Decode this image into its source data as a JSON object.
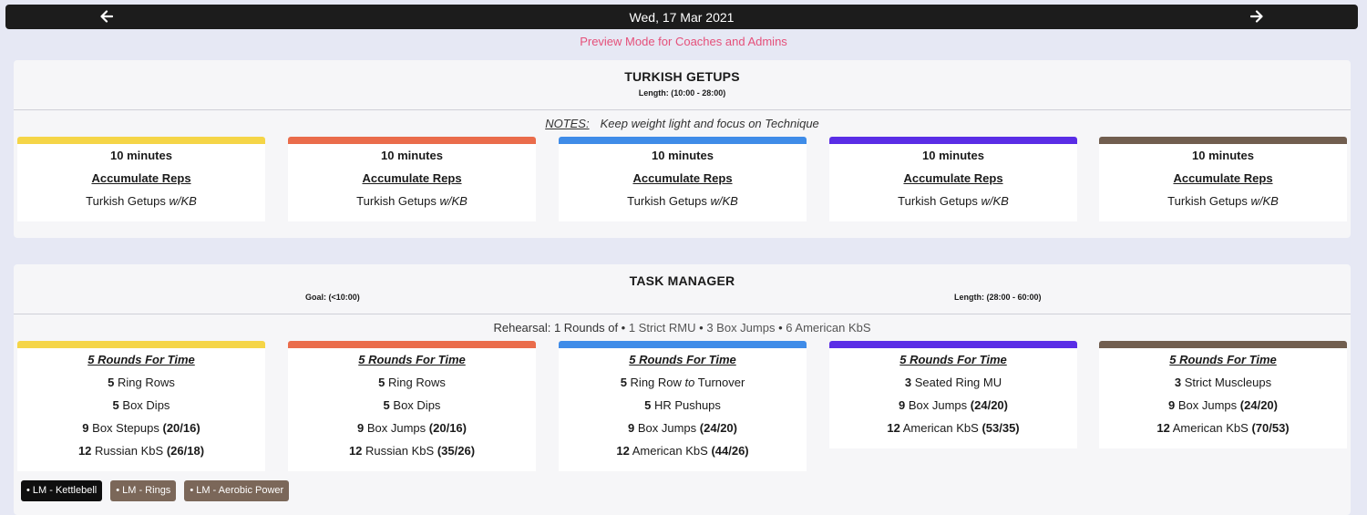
{
  "header": {
    "date": "Wed, 17 Mar 2021",
    "prev_icon": "arrow-left-icon",
    "next_icon": "arrow-right-icon"
  },
  "preview_text": "Preview Mode for Coaches and Admins",
  "colors": {
    "topbar": "#1c1c1c",
    "preview": "#e5507a",
    "tracks": [
      "#f5d547",
      "#ea6c4b",
      "#3f8ce8",
      "#5a2de6",
      "#715e4f"
    ]
  },
  "section1": {
    "title": "TURKISH GETUPS",
    "length": "Length: (10:00 - 28:00)",
    "notes_label": "NOTES:",
    "notes_text": "Keep weight light and focus on Technique",
    "cards": [
      {
        "time": "10 minutes",
        "format": "Accumulate Reps",
        "movement": "Turkish Getups",
        "equip": "w/KB"
      },
      {
        "time": "10 minutes",
        "format": "Accumulate Reps",
        "movement": "Turkish Getups",
        "equip": "w/KB"
      },
      {
        "time": "10 minutes",
        "format": "Accumulate Reps",
        "movement": "Turkish Getups",
        "equip": "w/KB"
      },
      {
        "time": "10 minutes",
        "format": "Accumulate Reps",
        "movement": "Turkish Getups",
        "equip": "w/KB"
      },
      {
        "time": "10 minutes",
        "format": "Accumulate Reps",
        "movement": "Turkish Getups",
        "equip": "w/KB"
      }
    ]
  },
  "section2": {
    "title": "TASK MANAGER",
    "goal": "Goal: (<10:00)",
    "length": "Length: (28:00 - 60:00)",
    "rehearsal": {
      "prefix": "Rehearsal: 1 Rounds of •",
      "item1": "1 Strict RMU",
      "sep1": "•",
      "item2": "3 Box Jumps",
      "sep2": "•",
      "item3": "6 American KbS"
    },
    "cards": [
      {
        "format": "5 Rounds For Time",
        "lines": [
          {
            "n": "5",
            "name": "Ring Rows",
            "w": ""
          },
          {
            "n": "5",
            "name": "Box Dips",
            "w": ""
          },
          {
            "n": "9",
            "name": "Box Stepups",
            "w": "(20/16)"
          },
          {
            "n": "12",
            "name": "Russian KbS",
            "w": "(26/18)"
          }
        ]
      },
      {
        "format": "5 Rounds For Time",
        "lines": [
          {
            "n": "5",
            "name": "Ring Rows",
            "w": ""
          },
          {
            "n": "5",
            "name": "Box Dips",
            "w": ""
          },
          {
            "n": "9",
            "name": "Box Jumps",
            "w": "(20/16)"
          },
          {
            "n": "12",
            "name": "Russian KbS",
            "w": "(35/26)"
          }
        ]
      },
      {
        "format": "5 Rounds For Time",
        "lines": [
          {
            "n": "5",
            "name": "Ring Row",
            "mid": "to",
            "name2": "Turnover",
            "w": ""
          },
          {
            "n": "5",
            "name": "HR Pushups",
            "w": ""
          },
          {
            "n": "9",
            "name": "Box Jumps",
            "w": "(24/20)"
          },
          {
            "n": "12",
            "name": "American KbS",
            "w": "(44/26)"
          }
        ]
      },
      {
        "format": "5 Rounds For Time",
        "lines": [
          {
            "n": "3",
            "name": "Seated Ring MU",
            "w": ""
          },
          {
            "n": "9",
            "name": "Box Jumps",
            "w": "(24/20)"
          },
          {
            "n": "12",
            "name": "American KbS",
            "w": "(53/35)"
          }
        ]
      },
      {
        "format": "5 Rounds For Time",
        "lines": [
          {
            "n": "3",
            "name": "Strict Muscleups",
            "w": ""
          },
          {
            "n": "9",
            "name": "Box Jumps",
            "w": "(24/20)"
          },
          {
            "n": "12",
            "name": "American KbS",
            "w": "(70/53)"
          }
        ]
      }
    ],
    "tags": [
      "• LM - Kettlebell",
      "• LM - Rings",
      "• LM - Aerobic Power"
    ]
  }
}
